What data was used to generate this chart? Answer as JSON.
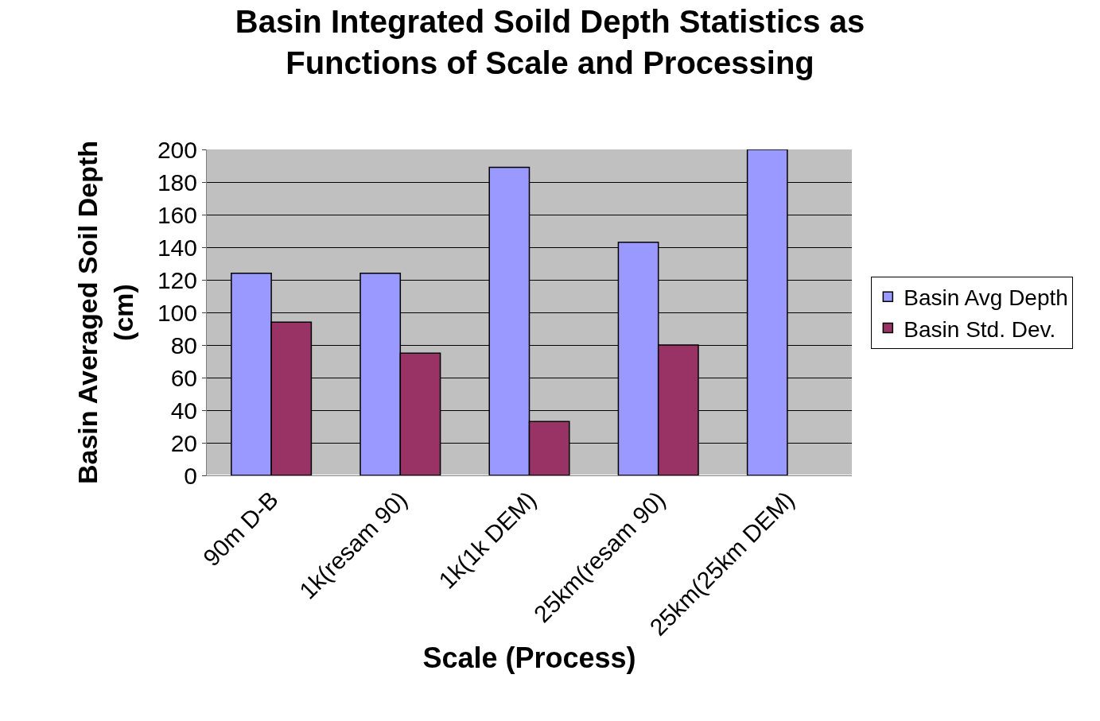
{
  "chart_data": {
    "type": "bar",
    "title": "Basin Integrated Soild Depth Statistics as\nFunctions of Scale and Processing",
    "xlabel": "Scale (Process)",
    "ylabel": "Basin Averaged Soil Depth\n(cm)",
    "categories": [
      "90m D-B",
      "1k(resam 90)",
      "1k(1k DEM)",
      "25km(resam 90)",
      "25km(25km DEM)"
    ],
    "series": [
      {
        "name": "Basin Avg Depth",
        "color": "#9999ff",
        "values": [
          124,
          124,
          189,
          143,
          200
        ]
      },
      {
        "name": "Basin Std. Dev.",
        "color": "#993366",
        "values": [
          94,
          75,
          33,
          80,
          null
        ]
      }
    ],
    "ylim": [
      0,
      200
    ],
    "yticks": [
      0,
      20,
      40,
      60,
      80,
      100,
      120,
      140,
      160,
      180,
      200
    ],
    "grid": "y",
    "legend": "right"
  }
}
